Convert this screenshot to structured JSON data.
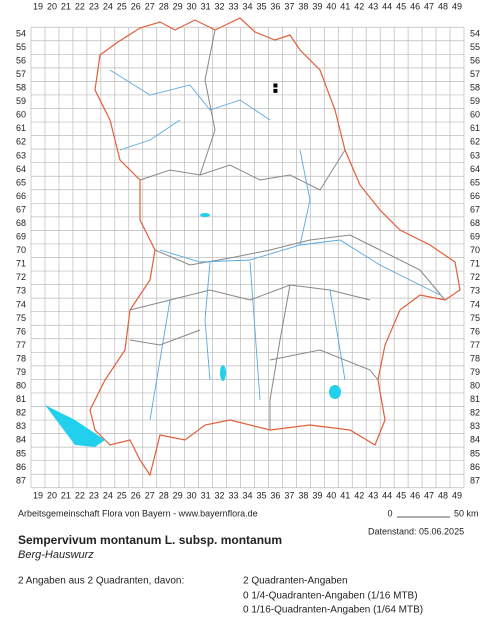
{
  "map": {
    "columns": [
      19,
      20,
      21,
      22,
      23,
      24,
      25,
      26,
      27,
      28,
      29,
      30,
      31,
      32,
      33,
      34,
      35,
      36,
      37,
      38,
      39,
      40,
      41,
      42,
      43,
      44,
      45,
      46,
      47,
      48,
      49
    ],
    "rows": [
      54,
      55,
      56,
      57,
      58,
      59,
      60,
      61,
      62,
      63,
      64,
      65,
      66,
      67,
      68,
      69,
      70,
      71,
      72,
      73,
      74,
      75,
      76,
      77,
      78,
      79,
      80,
      81,
      82,
      83,
      84,
      85,
      86,
      87
    ],
    "points": [
      {
        "column": 36,
        "row": 57.8
      },
      {
        "column": 36,
        "row": 58.2
      }
    ]
  },
  "credit": "Arbeitsgemeinschaft Flora von Bayern - www.bayernflora.de",
  "scale": {
    "start": "0",
    "end": "50 km"
  },
  "date": "Datenstand: 05.06.2025",
  "title": "Sempervivum montanum L. subsp. montanum",
  "subtitle": "Berg-Hauswurz",
  "summary": "2 Angaben aus 2 Quadranten, davon:",
  "details": [
    "2 Quadranten-Angaben",
    "0 1/4-Quadranten-Angaben (1/16 MTB)",
    "0 1/16-Quadranten-Angaben (1/64 MTB)"
  ]
}
